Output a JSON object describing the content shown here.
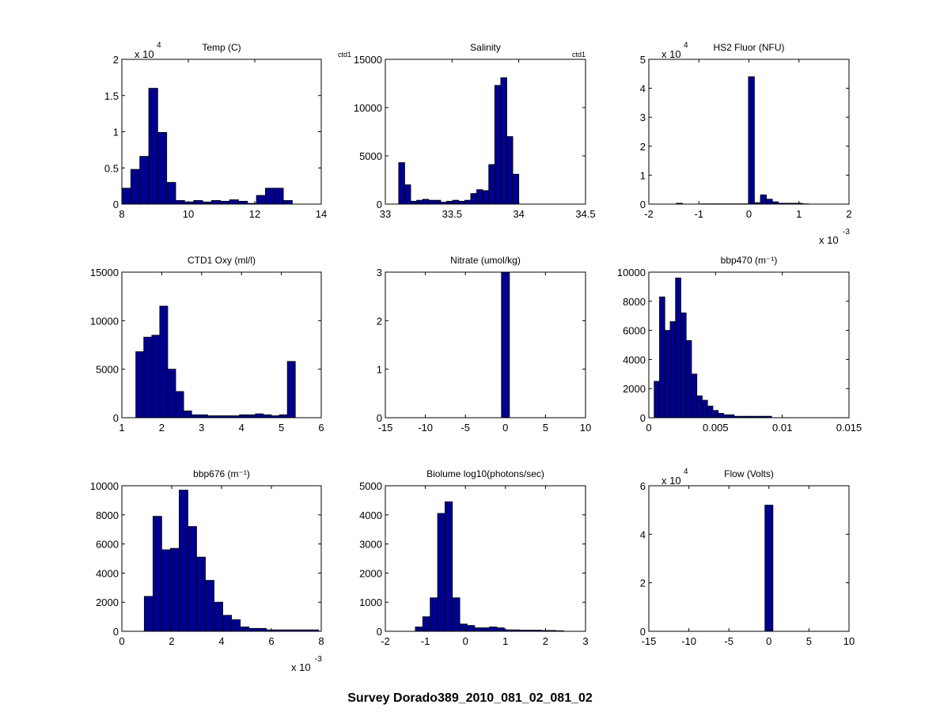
{
  "figure": {
    "suptitle": "Survey Dorado389_2010_081_02_081_02",
    "bar_color": "#00008F",
    "edge_color": "#000000"
  },
  "chart_data": [
    {
      "type": "bar",
      "title": "Temp (C)",
      "xlim": [
        8,
        14
      ],
      "ylim": [
        0,
        20000
      ],
      "xticks": [
        8,
        10,
        12,
        14
      ],
      "xtick_labels": [
        "8",
        "10",
        "12",
        "14"
      ],
      "yticks": [
        0,
        5000,
        10000,
        15000,
        20000
      ],
      "ytick_labels": [
        "0",
        "0.5",
        "1",
        "1.5",
        "2"
      ],
      "y_exponent": "4",
      "x_exponent": "",
      "corner_note": "",
      "bin_edges": [
        8.0,
        8.27,
        8.54,
        8.81,
        9.08,
        9.35,
        9.62,
        9.89,
        10.16,
        10.43,
        10.7,
        10.97,
        11.24,
        11.51,
        11.78,
        12.05,
        12.32,
        12.59,
        12.86,
        13.13,
        13.4
      ],
      "values": [
        2200,
        4800,
        6600,
        16000,
        9900,
        3000,
        500,
        300,
        500,
        300,
        500,
        400,
        600,
        400,
        100,
        1200,
        2200,
        2200,
        500,
        0
      ]
    },
    {
      "type": "bar",
      "title": "Salinity",
      "xlim": [
        33,
        34.5
      ],
      "ylim": [
        0,
        15000
      ],
      "xticks": [
        33,
        33.5,
        34,
        34.5
      ],
      "xtick_labels": [
        "33",
        "33.5",
        "34",
        "34.5"
      ],
      "yticks": [
        0,
        5000,
        10000,
        15000
      ],
      "ytick_labels": [
        "0",
        "5000",
        "10000",
        "15000"
      ],
      "y_exponent": "",
      "x_exponent": "",
      "corner_note": "ctd1",
      "bin_edges": [
        33.1,
        33.145,
        33.19,
        33.235,
        33.28,
        33.325,
        33.37,
        33.415,
        33.46,
        33.505,
        33.55,
        33.595,
        33.64,
        33.685,
        33.73,
        33.775,
        33.82,
        33.865,
        33.91,
        33.955,
        34.0,
        34.045,
        34.09
      ],
      "values": [
        4300,
        2000,
        300,
        400,
        500,
        400,
        400,
        200,
        300,
        400,
        300,
        400,
        1100,
        1500,
        1400,
        4100,
        12300,
        13100,
        7000,
        3100,
        0,
        0
      ]
    },
    {
      "type": "bar",
      "title": "HS2 Fluor (NFU)",
      "xlim": [
        -0.002,
        0.002
      ],
      "ylim": [
        0,
        50000
      ],
      "xticks": [
        -0.002,
        -0.001,
        0,
        0.001,
        0.002
      ],
      "xtick_labels": [
        "-2",
        "-1",
        "0",
        "1",
        "2"
      ],
      "yticks": [
        0,
        10000,
        20000,
        30000,
        40000,
        50000
      ],
      "ytick_labels": [
        "0",
        "1",
        "2",
        "3",
        "4",
        "5"
      ],
      "y_exponent": "4",
      "x_exponent": "-3",
      "corner_note": "",
      "bin_edges": [
        -0.00145,
        -0.00133,
        -0.00121,
        -0.00109,
        -0.00097,
        -0.00085,
        -0.00073,
        -0.00061,
        -0.00049,
        -0.00037,
        -0.00025,
        -0.00013,
        -1e-05,
        0.00011,
        0.00023,
        0.00035,
        0.00047,
        0.00059,
        0.00071,
        0.00083,
        0.00095,
        0.00107,
        0.00119
      ],
      "values": [
        300,
        0,
        0,
        0,
        100,
        100,
        100,
        100,
        100,
        100,
        100,
        100,
        44000,
        500,
        3200,
        1700,
        800,
        300,
        300,
        300,
        300,
        100
      ]
    },
    {
      "type": "bar",
      "title": "CTD1 Oxy (ml/l)",
      "xlim": [
        1,
        6
      ],
      "ylim": [
        0,
        15000
      ],
      "xticks": [
        1,
        2,
        3,
        4,
        5,
        6
      ],
      "xtick_labels": [
        "1",
        "2",
        "3",
        "4",
        "5",
        "6"
      ],
      "yticks": [
        0,
        5000,
        10000,
        15000
      ],
      "ytick_labels": [
        "0",
        "5000",
        "10000",
        "15000"
      ],
      "y_exponent": "",
      "x_exponent": "",
      "corner_note": "",
      "bin_edges": [
        1.35,
        1.55,
        1.75,
        1.95,
        2.15,
        2.35,
        2.55,
        2.75,
        2.95,
        3.15,
        3.35,
        3.55,
        3.75,
        3.95,
        4.15,
        4.35,
        4.55,
        4.75,
        4.95,
        5.15,
        5.35
      ],
      "values": [
        6800,
        8300,
        8500,
        11500,
        5000,
        2700,
        700,
        300,
        300,
        200,
        200,
        200,
        200,
        300,
        300,
        400,
        300,
        200,
        300,
        5800
      ]
    },
    {
      "type": "bar",
      "title": "Nitrate (umol/kg)",
      "xlim": [
        -15,
        10
      ],
      "ylim": [
        0,
        3
      ],
      "xticks": [
        -15,
        -10,
        -5,
        0,
        5,
        10
      ],
      "xtick_labels": [
        "-15",
        "-10",
        "-5",
        "0",
        "5",
        "10"
      ],
      "yticks": [
        0,
        1,
        2,
        3
      ],
      "ytick_labels": [
        "0",
        "1",
        "2",
        "3"
      ],
      "y_exponent": "",
      "x_exponent": "",
      "corner_note": "",
      "bin_edges": [
        -0.5,
        0.5
      ],
      "values": [
        3
      ]
    },
    {
      "type": "bar",
      "title": "bbp470 (m⁻¹)",
      "xlim": [
        0,
        0.015
      ],
      "ylim": [
        0,
        10000
      ],
      "xticks": [
        0,
        0.005,
        0.01,
        0.015
      ],
      "xtick_labels": [
        "0",
        "0.005",
        "0.01",
        "0.015"
      ],
      "yticks": [
        0,
        2000,
        4000,
        6000,
        8000,
        10000
      ],
      "ytick_labels": [
        "0",
        "2000",
        "4000",
        "6000",
        "8000",
        "10000"
      ],
      "y_exponent": "",
      "x_exponent": "",
      "corner_note": "",
      "bin_edges": [
        0.0004,
        0.0008,
        0.0012,
        0.0016,
        0.002,
        0.0024,
        0.0028,
        0.0032,
        0.0036,
        0.004,
        0.0044,
        0.0048,
        0.0052,
        0.0056,
        0.006,
        0.0064,
        0.0068,
        0.0072,
        0.0076,
        0.008,
        0.0084,
        0.0088,
        0.0092,
        0.0096,
        0.01,
        0.0104,
        0.0108
      ],
      "values": [
        2500,
        8300,
        6000,
        6600,
        9600,
        7200,
        5300,
        3000,
        1500,
        1200,
        800,
        500,
        300,
        200,
        200,
        100,
        100,
        100,
        100,
        100,
        100,
        100,
        0,
        0,
        0,
        0
      ]
    },
    {
      "type": "bar",
      "title": "bbp676 (m⁻¹)",
      "xlim": [
        0,
        0.008
      ],
      "ylim": [
        0,
        10000
      ],
      "xticks": [
        0,
        0.002,
        0.004,
        0.006,
        0.008
      ],
      "xtick_labels": [
        "0",
        "2",
        "4",
        "6",
        "8"
      ],
      "yticks": [
        0,
        2000,
        4000,
        6000,
        8000,
        10000
      ],
      "ytick_labels": [
        "0",
        "2000",
        "4000",
        "6000",
        "8000",
        "10000"
      ],
      "y_exponent": "",
      "x_exponent": "-3",
      "corner_note": "",
      "bin_edges": [
        0.0009,
        0.00125,
        0.0016,
        0.00195,
        0.0023,
        0.00265,
        0.003,
        0.00335,
        0.0037,
        0.00405,
        0.0044,
        0.00475,
        0.0051,
        0.00545,
        0.0058,
        0.00615,
        0.0065,
        0.00685,
        0.0072,
        0.00755,
        0.0079
      ],
      "values": [
        2400,
        7900,
        5600,
        5700,
        9700,
        7200,
        5100,
        3500,
        2000,
        1100,
        800,
        300,
        200,
        200,
        100,
        100,
        100,
        100,
        100,
        100
      ]
    },
    {
      "type": "bar",
      "title": "Biolume log10(photons/sec)",
      "xlim": [
        -2,
        3
      ],
      "ylim": [
        0,
        5000
      ],
      "xticks": [
        -2,
        -1,
        0,
        1,
        2,
        3
      ],
      "xtick_labels": [
        "-2",
        "-1",
        "0",
        "1",
        "2",
        "3"
      ],
      "yticks": [
        0,
        1000,
        2000,
        3000,
        4000,
        5000
      ],
      "ytick_labels": [
        "0",
        "1000",
        "2000",
        "3000",
        "4000",
        "5000"
      ],
      "y_exponent": "",
      "x_exponent": "",
      "corner_note": "",
      "bin_edges": [
        -1.25,
        -1.065,
        -0.88,
        -0.695,
        -0.51,
        -0.325,
        -0.14,
        0.045,
        0.23,
        0.415,
        0.6,
        0.785,
        0.97,
        1.155,
        1.34,
        1.525,
        1.71,
        1.895,
        2.08,
        2.265,
        2.45
      ],
      "values": [
        150,
        500,
        1150,
        4050,
        4450,
        1150,
        250,
        200,
        120,
        120,
        150,
        120,
        50,
        50,
        40,
        40,
        40,
        30,
        30,
        20
      ]
    },
    {
      "type": "bar",
      "title": "Flow (Volts)",
      "xlim": [
        -15,
        10
      ],
      "ylim": [
        0,
        60000
      ],
      "xticks": [
        -15,
        -10,
        -5,
        0,
        5,
        10
      ],
      "xtick_labels": [
        "-15",
        "-10",
        "-5",
        "0",
        "5",
        "10"
      ],
      "yticks": [
        0,
        20000,
        40000,
        60000
      ],
      "ytick_labels": [
        "0",
        "2",
        "4",
        "6"
      ],
      "y_exponent": "4",
      "x_exponent": "",
      "corner_note": "",
      "bin_edges": [
        -0.5,
        0.5
      ],
      "values": [
        52000
      ]
    }
  ]
}
